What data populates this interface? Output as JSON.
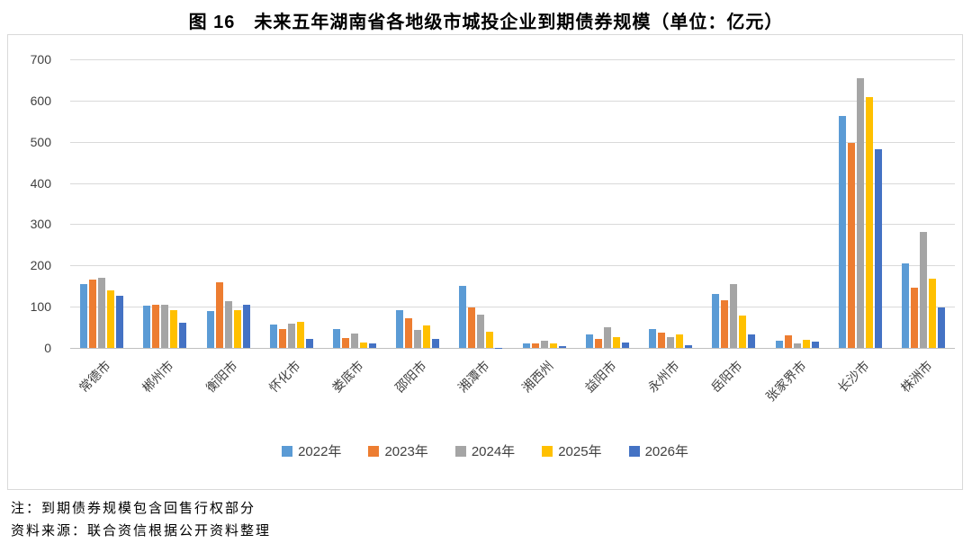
{
  "page": {
    "title": "图 16　未来五年湖南省各地级市城投企业到期债券规模（单位：亿元）",
    "note_text": "注：到期债券规模包含回售行权部分",
    "source_text": "资料来源：联合资信根据公开资料整理"
  },
  "chart_data": {
    "type": "bar",
    "title": "图 16　未来五年湖南省各地级市城投企业到期债券规模（单位：亿元）",
    "unit": "亿元",
    "xlabel": "",
    "ylabel": "",
    "ylim": [
      0,
      700
    ],
    "yticks": [
      0,
      100,
      200,
      300,
      400,
      500,
      600,
      700
    ],
    "grid": true,
    "legend_position": "bottom",
    "categories": [
      "常德市",
      "郴州市",
      "衡阳市",
      "怀化市",
      "娄底市",
      "邵阳市",
      "湘潭市",
      "湘西州",
      "益阳市",
      "永州市",
      "岳阳市",
      "张家界市",
      "长沙市",
      "株洲市"
    ],
    "series": [
      {
        "name": "2022年",
        "color": "#5B9BD5",
        "values": [
          155,
          102,
          90,
          57,
          45,
          91,
          151,
          11,
          33,
          45,
          130,
          18,
          562,
          205
        ]
      },
      {
        "name": "2023年",
        "color": "#ED7D31",
        "values": [
          166,
          105,
          160,
          45,
          24,
          72,
          98,
          12,
          22,
          38,
          115,
          30,
          497,
          146
        ]
      },
      {
        "name": "2024年",
        "color": "#A5A5A5",
        "values": [
          170,
          104,
          113,
          60,
          35,
          44,
          81,
          17,
          50,
          26,
          154,
          12,
          655,
          281
        ]
      },
      {
        "name": "2025年",
        "color": "#FFC000",
        "values": [
          140,
          92,
          91,
          64,
          13,
          55,
          40,
          12,
          26,
          33,
          78,
          20,
          609,
          169
        ]
      },
      {
        "name": "2026年",
        "color": "#4472C4",
        "values": [
          126,
          62,
          104,
          22,
          12,
          21,
          1,
          5,
          14,
          7,
          33,
          15,
          481,
          98
        ]
      }
    ],
    "colors": {
      "gridline": "#D9D9D9",
      "axis_line": "#BFBFBF",
      "tick_label": "#404040",
      "chart_border": "#D9D9D9"
    }
  }
}
